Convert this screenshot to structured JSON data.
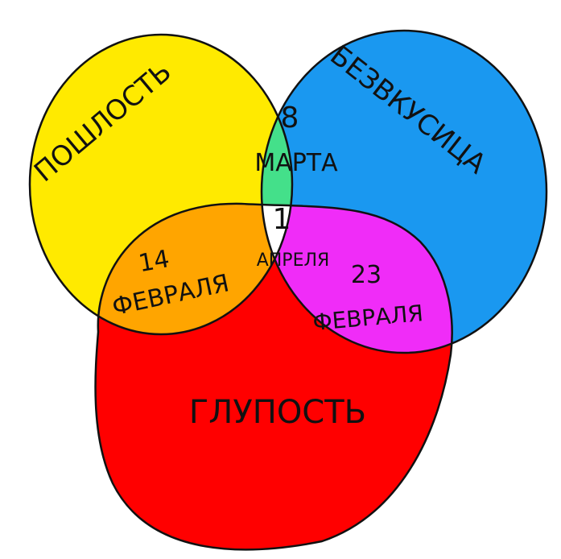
{
  "diagram": {
    "type": "venn",
    "sets": [
      {
        "id": "yellow",
        "label": "ПОШЛОСТЬ",
        "color": "#ffea00"
      },
      {
        "id": "blue",
        "label": "БЕЗВКУСИЦА",
        "color": "#1a98f0"
      },
      {
        "id": "red",
        "label": "ГЛУПОСТЬ",
        "color": "#ff0000"
      }
    ],
    "intersections": {
      "yellow_blue": {
        "day": "8",
        "month": "МАРТА",
        "color": "#44e08a"
      },
      "yellow_red": {
        "day": "14",
        "month": "ФЕВРАЛЯ",
        "color": "#ffa500"
      },
      "blue_red": {
        "day": "23",
        "month": "ФЕВРАЛЯ",
        "color": "#f02cf8"
      },
      "all": {
        "day": "1",
        "month": "АПРЕЛЯ",
        "color": "#ffffff"
      }
    },
    "outline_color": "#111111"
  }
}
